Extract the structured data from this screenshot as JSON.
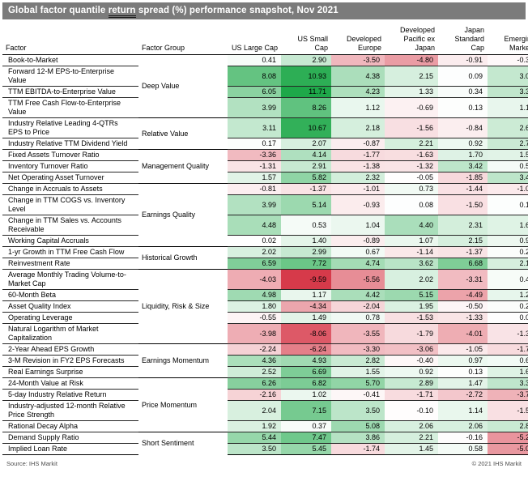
{
  "title": {
    "pre": "Global factor quantile ",
    "underlined": "return",
    "post": " spread (%) performance snapshot, Nov 2021"
  },
  "columns": [
    "Factor",
    "Factor Group",
    "US Large Cap",
    "US Small Cap",
    "Developed Europe",
    "Developed Pacific ex Japan",
    "Japan Standard Cap",
    "Emerging Markets"
  ],
  "heatmap": {
    "positive_color": "#1ea849",
    "negative_color": "#d63a4a",
    "midpoint_color": "#ffffff",
    "positive_scale_max": 11.71,
    "negative_scale_max": -9.59
  },
  "groups": [
    {
      "name": "Deep Value",
      "rows": [
        {
          "factor": "Book-to-Market",
          "values": [
            0.41,
            2.9,
            -3.5,
            -4.8,
            -0.91,
            -0.34
          ]
        },
        {
          "factor": "Forward 12-M EPS-to-Enterprise Value",
          "values": [
            8.08,
            10.93,
            4.38,
            2.15,
            0.09,
            3.08
          ]
        },
        {
          "factor": "TTM EBITDA-to-Enterprise Value",
          "values": [
            6.05,
            11.71,
            4.23,
            1.33,
            0.34,
            3.3
          ]
        },
        {
          "factor": "TTM Free Cash Flow-to-Enterprise Value",
          "values": [
            3.99,
            8.26,
            1.12,
            -0.69,
            0.13,
            1.19
          ]
        }
      ]
    },
    {
      "name": "Relative Value",
      "rows": [
        {
          "factor": "Industry Relative Leading 4-QTRs EPS to Price",
          "values": [
            3.11,
            10.67,
            2.18,
            -1.56,
            -0.84,
            2.68
          ]
        },
        {
          "factor": "Industry Relative TTM Dividend Yield",
          "values": [
            0.17,
            2.07,
            -0.87,
            2.21,
            0.92,
            2.77
          ]
        }
      ]
    },
    {
      "name": "Management Quality",
      "rows": [
        {
          "factor": "Fixed Assets Turnover Ratio",
          "values": [
            -3.36,
            4.14,
            -1.77,
            -1.63,
            1.7,
            1.55
          ]
        },
        {
          "factor": "Inventory Turnover Ratio",
          "values": [
            -1.31,
            2.91,
            -1.38,
            -1.32,
            3.42,
            0.54
          ]
        },
        {
          "factor": "Net Operating Asset Turnover",
          "values": [
            1.57,
            5.82,
            2.32,
            -0.05,
            -1.85,
            3.44
          ]
        }
      ]
    },
    {
      "name": "Earnings Quality",
      "rows": [
        {
          "factor": "Change in Accruals to Assets",
          "values": [
            -0.81,
            -1.37,
            -1.01,
            0.73,
            -1.44,
            -1.03
          ]
        },
        {
          "factor": "Change in TTM COGS vs. Inventory Level",
          "values": [
            3.99,
            5.14,
            -0.93,
            0.08,
            -1.5,
            0.14
          ]
        },
        {
          "factor": "Change in TTM Sales vs. Accounts Receivable",
          "values": [
            4.48,
            0.53,
            1.04,
            4.4,
            2.31,
            1.65
          ]
        },
        {
          "factor": "Working Capital Accruals",
          "values": [
            0.02,
            1.4,
            -0.89,
            1.07,
            2.15,
            0.95
          ]
        }
      ]
    },
    {
      "name": "Historical Growth",
      "rows": [
        {
          "factor": "1-yr Growth in TTM Free Cash Flow",
          "values": [
            2.02,
            2.99,
            0.67,
            -1.14,
            -1.37,
            0.23
          ]
        },
        {
          "factor": "Reinvestment Rate",
          "values": [
            6.59,
            7.72,
            4.74,
            3.62,
            6.68,
            2.13
          ]
        }
      ]
    },
    {
      "name": "Liquidity, Risk & Size",
      "rows": [
        {
          "factor": "Average Monthly Trading Volume-to-Market Cap",
          "values": [
            -4.03,
            -9.59,
            -5.56,
            2.02,
            -3.31,
            0.43
          ]
        },
        {
          "factor": "60-Month Beta",
          "values": [
            4.98,
            1.17,
            4.42,
            5.15,
            -4.49,
            1.23
          ]
        },
        {
          "factor": "Asset Quality Index",
          "values": [
            1.8,
            -4.34,
            -2.04,
            1.95,
            -0.5,
            0.23
          ]
        },
        {
          "factor": "Operating Leverage",
          "values": [
            -0.55,
            1.49,
            0.78,
            -1.53,
            -1.33,
            0.07
          ]
        },
        {
          "factor": "Natural Logarithm of Market Capitalization",
          "values": [
            -3.98,
            -8.06,
            -3.55,
            -1.79,
            -4.01,
            -1.34
          ]
        }
      ]
    },
    {
      "name": "Earnings Momentum",
      "rows": [
        {
          "factor": "2-Year Ahead EPS Growth",
          "values": [
            -2.24,
            -6.24,
            -3.3,
            -3.06,
            -1.05,
            -1.74
          ]
        },
        {
          "factor": "3-M Revision in FY2 EPS Forecasts",
          "values": [
            4.36,
            4.93,
            2.82,
            -0.4,
            0.97,
            0.66
          ]
        },
        {
          "factor": "Real Earnings Surprise",
          "values": [
            2.52,
            6.69,
            1.55,
            0.92,
            0.13,
            1.65
          ]
        }
      ]
    },
    {
      "name": "Price Momentum",
      "rows": [
        {
          "factor": "24-Month Value at Risk",
          "values": [
            6.26,
            6.82,
            5.7,
            2.89,
            1.47,
            3.31
          ]
        },
        {
          "factor": "5-day Industry Relative Return",
          "values": [
            -2.16,
            1.02,
            -0.41,
            -1.71,
            -2.72,
            -3.76
          ]
        },
        {
          "factor": "Industry-adjusted 12-month Relative Price Strength",
          "values": [
            2.04,
            7.15,
            3.5,
            -0.1,
            1.14,
            -1.5
          ]
        },
        {
          "factor": "Rational Decay Alpha",
          "values": [
            1.92,
            0.37,
            5.08,
            2.06,
            2.06,
            2.81
          ]
        }
      ]
    },
    {
      "name": "Short Sentiment",
      "rows": [
        {
          "factor": "Demand Supply Ratio",
          "values": [
            5.44,
            7.47,
            3.86,
            2.21,
            -0.16,
            -5.21
          ]
        },
        {
          "factor": "Implied Loan Rate",
          "values": [
            3.5,
            5.45,
            -1.74,
            1.45,
            0.58,
            -5.03
          ]
        }
      ]
    }
  ],
  "footer": {
    "source": "Source: IHS Markit",
    "copyright": "© 2021 IHS Markit"
  }
}
